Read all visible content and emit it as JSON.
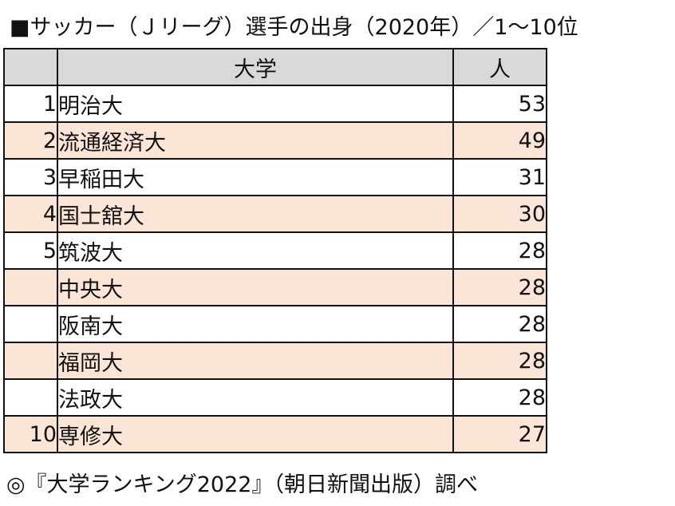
{
  "title": "■サッカー（Ｊリーグ）選手の出身（2020年）／1〜10位",
  "table": {
    "headers": {
      "rank": "",
      "university": "大学",
      "count": "人"
    },
    "rows": [
      {
        "rank": "1",
        "university": "明治大",
        "count": "53"
      },
      {
        "rank": "2",
        "university": "流通経済大",
        "count": "49"
      },
      {
        "rank": "3",
        "university": "早稲田大",
        "count": "31"
      },
      {
        "rank": "4",
        "university": "国士舘大",
        "count": "30"
      },
      {
        "rank": "5",
        "university": "筑波大",
        "count": "28"
      },
      {
        "rank": "",
        "university": "中央大",
        "count": "28"
      },
      {
        "rank": "",
        "university": "阪南大",
        "count": "28"
      },
      {
        "rank": "",
        "university": "福岡大",
        "count": "28"
      },
      {
        "rank": "",
        "university": "法政大",
        "count": "28"
      },
      {
        "rank": "10",
        "university": "専修大",
        "count": "27"
      }
    ]
  },
  "footnote": "◎『大学ランキング2022』（朝日新聞出版）調べ",
  "colors": {
    "header_bg": "#d9d9d9",
    "shade_bg": "#fbe5d6",
    "border": "#111111"
  }
}
